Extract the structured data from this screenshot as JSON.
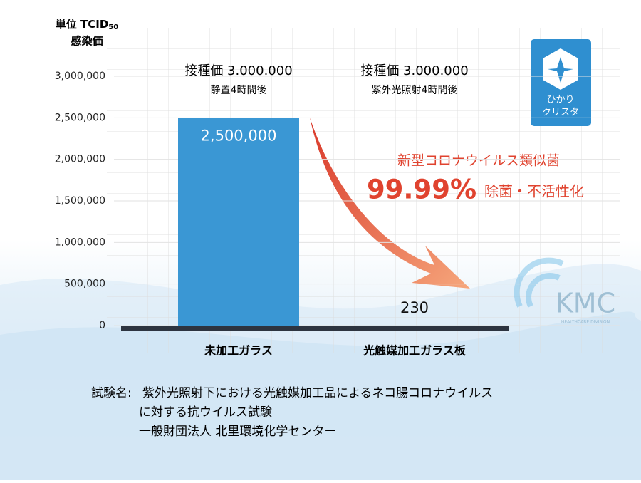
{
  "chart_data": {
    "type": "bar",
    "y_axis_label": {
      "unit": "単位 TCID",
      "subscript": "50",
      "line2": "感染価"
    },
    "categories": [
      "未加工ガラス",
      "光触媒加工ガラス板"
    ],
    "values": [
      2500000,
      230
    ],
    "value_labels": [
      "2,500,000",
      "230"
    ],
    "color": "#3a97d4",
    "ylim": [
      0,
      3000000
    ],
    "yticks": [
      0,
      {
        "value": 500000,
        "label": "500,000"
      },
      {
        "value": 1000000,
        "label": "1,000,000"
      },
      {
        "value": 1500000,
        "label": "1,500,000"
      },
      {
        "value": 2000000,
        "label": "2,000,000"
      },
      {
        "value": 2500000,
        "label": "2,500,000"
      },
      {
        "value": 3000000,
        "label": "3,000,000"
      }
    ],
    "grid": true,
    "bar_headers": [
      {
        "line1": "接種価 3.000.000",
        "line2": "静置4時間後"
      },
      {
        "line1": "接種価 3.000.000",
        "line2": "紫外光照射4時間後"
      }
    ],
    "callout": {
      "line1": "新型コロナウイルス類似菌",
      "big": "99.99%",
      "rest": "除菌・不活性化"
    }
  },
  "logo": {
    "line1": "ひかり",
    "line2": "クリスタ"
  },
  "brand": {
    "name": "KMC",
    "sub": "HEALTHCARE DIVISION"
  },
  "footer": {
    "label": "試験名:",
    "line1": "紫外光照射下における光触媒加工品によるネコ腸コロナウイルス",
    "line2": "に対する抗ウイルス試験",
    "line3": "一般財団法人  北里環境化学センター"
  }
}
